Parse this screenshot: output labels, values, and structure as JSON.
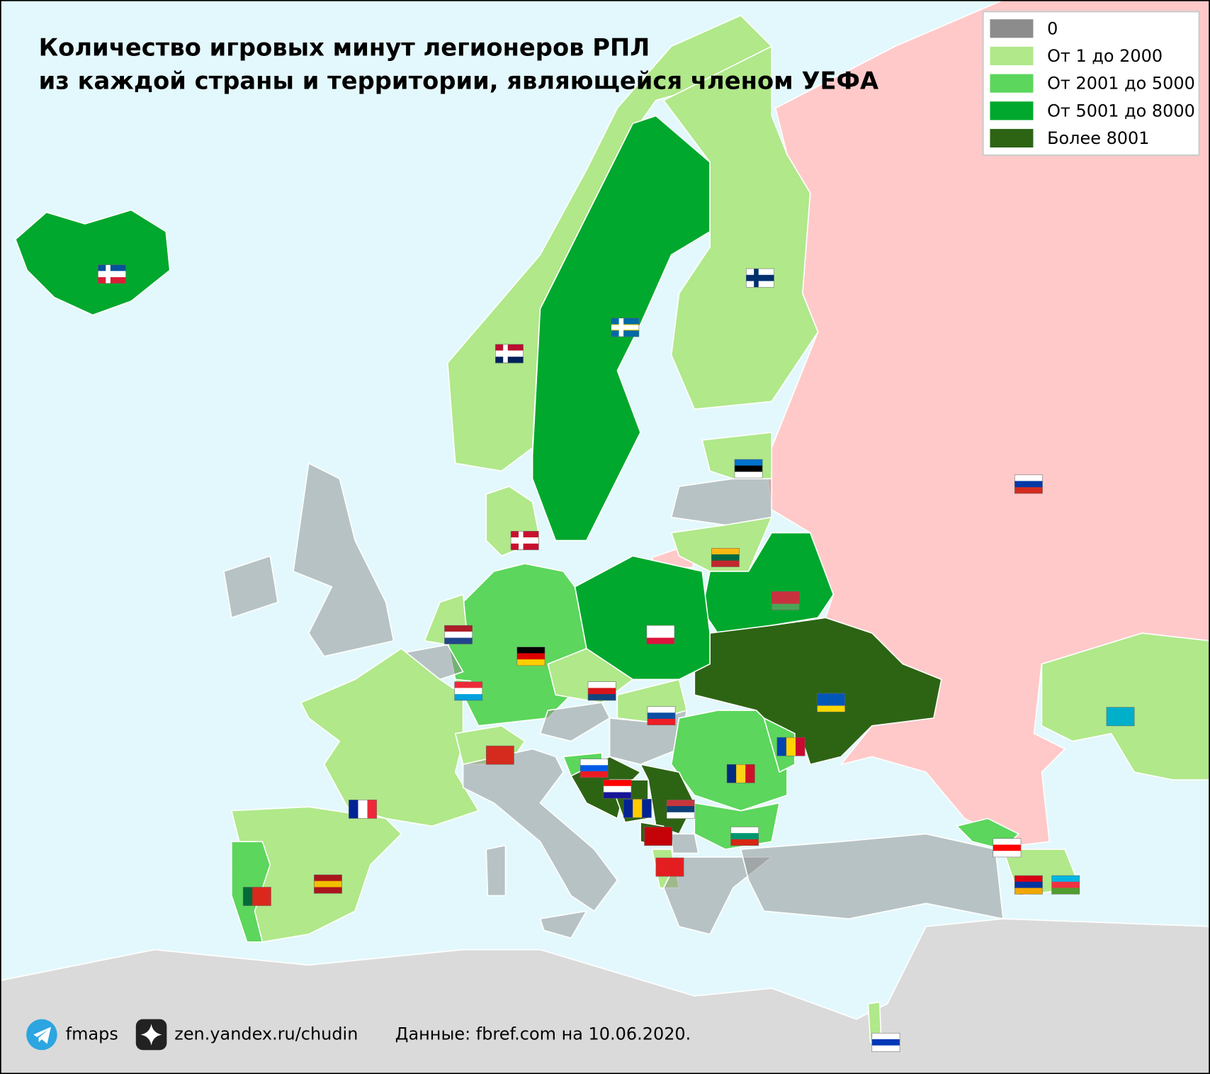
{
  "title": [
    "Количество игровых минут легионеров РПЛ",
    "из каждой страны и территории, являющейся членом УЕФА"
  ],
  "legend": [
    {
      "label": "0",
      "color": "#8c8c8c"
    },
    {
      "label": "От 1 до 2000",
      "color": "#b0e88a"
    },
    {
      "label": "От 2001 до 5000",
      "color": "#5cd65c"
    },
    {
      "label": "От 5001 до 8000",
      "color": "#00a82d"
    },
    {
      "label": "Более 8001",
      "color": "#2d6414"
    }
  ],
  "footer": {
    "telegram": "fmaps",
    "zen": "zen.yandex.ru/chudin",
    "source": "Данные: fbref.com на 10.06.2020."
  }
}
